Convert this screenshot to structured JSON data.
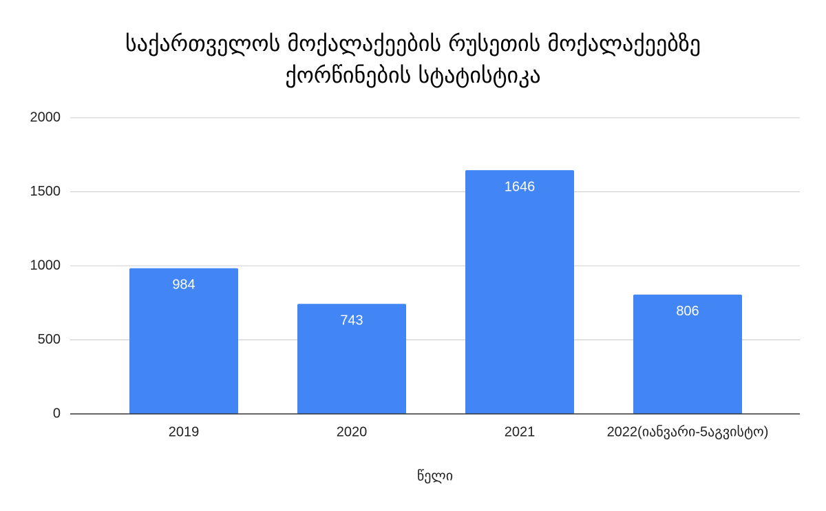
{
  "chart_data": {
    "type": "bar",
    "title": "საქართველოს მოქალაქეების რუსეთის მოქალაქეებზე ქორწინების სტატისტიკა",
    "x_label": "წელი",
    "categories": [
      "2019",
      "2020",
      "2021",
      "2022(იანვარი-5აგვისტო)"
    ],
    "values": [
      984,
      743,
      1646,
      806
    ],
    "color": "#4285f4",
    "ylim": [
      0,
      2000
    ],
    "yticks": [
      0,
      500,
      1000,
      1500,
      2000
    ],
    "grid": true
  }
}
